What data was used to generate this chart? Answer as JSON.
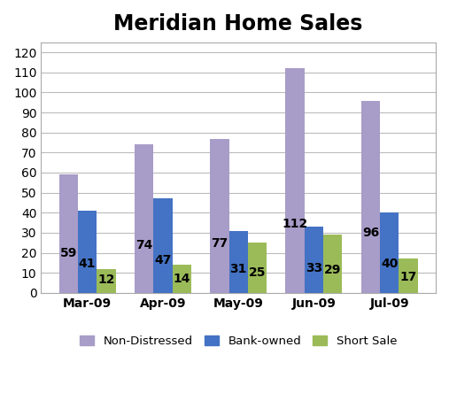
{
  "title": "Meridian Home Sales",
  "categories": [
    "Mar-09",
    "Apr-09",
    "May-09",
    "Jun-09",
    "Jul-09"
  ],
  "series": {
    "Non-Distressed": [
      59,
      74,
      77,
      112,
      96
    ],
    "Bank-owned": [
      41,
      47,
      31,
      33,
      40
    ],
    "Short Sale": [
      12,
      14,
      25,
      29,
      17
    ]
  },
  "colors": {
    "Non-Distressed": "#A89CC8",
    "Bank-owned": "#4472C4",
    "Short Sale": "#9BBB59"
  },
  "legend_labels": [
    "Non-Distressed",
    "Bank-owned",
    "Short Sale"
  ],
  "ylim": [
    0,
    125
  ],
  "yticks": [
    0,
    10,
    20,
    30,
    40,
    50,
    60,
    70,
    80,
    90,
    100,
    110,
    120
  ],
  "bar_width": 0.25,
  "title_fontsize": 17,
  "tick_fontsize": 10,
  "label_fontsize": 10,
  "legend_fontsize": 9.5,
  "figure_background": "#FFFFFF",
  "plot_background": "#FFFFFF",
  "grid_color": "#BBBBBB",
  "border_color": "#AAAAAA"
}
